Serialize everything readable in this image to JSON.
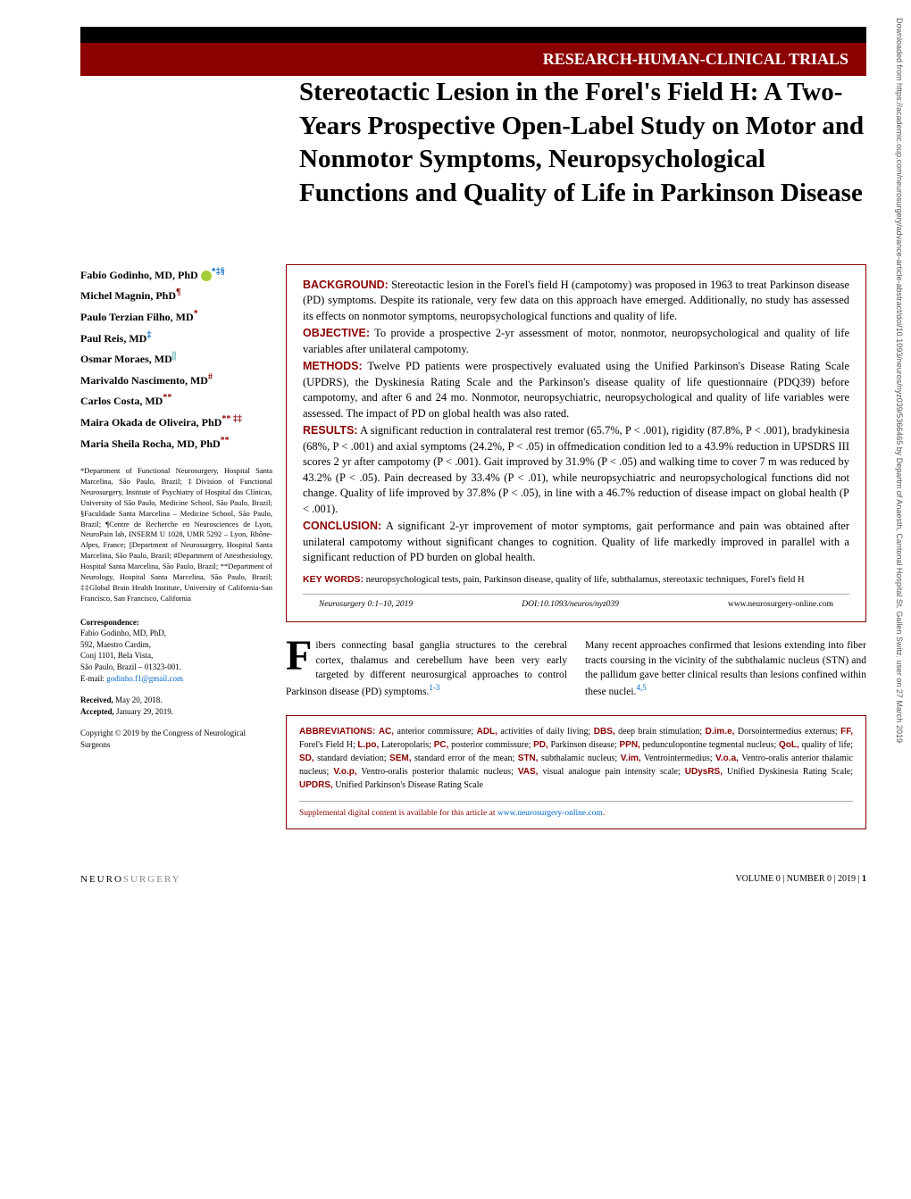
{
  "bars": {
    "black_bg": "#000000",
    "red_bg": "#8b0000",
    "header_label": "RESEARCH-HUMAN-CLINICAL TRIALS"
  },
  "title": "Stereotactic Lesion in the Forel's Field H: A Two-Years Prospective Open-Label Study on Motor and Nonmotor Symptoms, Neuropsychological Functions and Quality of Life in Parkinson Disease",
  "authors": [
    {
      "name": "Fabio Godinho, MD, PhD",
      "sup": "*‡§",
      "orcid": true,
      "sup_class": "blue-sup"
    },
    {
      "name": "Michel Magnin, PhD",
      "sup": "¶",
      "sup_class": "sup"
    },
    {
      "name": "Paulo Terzian Filho, MD",
      "sup": "*",
      "sup_class": "sup"
    },
    {
      "name": "Paul Reis, MD",
      "sup": "‡",
      "sup_class": "blue-sup"
    },
    {
      "name": "Osmar Moraes, MD",
      "sup": "||",
      "sup_class": "teal-sup"
    },
    {
      "name": "Marivaldo Nascimento, MD",
      "sup": "#",
      "sup_class": "sup"
    },
    {
      "name": "Carlos Costa, MD",
      "sup": "**",
      "sup_class": "sup"
    },
    {
      "name": "Maira Okada de Oliveira, PhD",
      "sup": "** ‡‡",
      "sup_class": "sup"
    },
    {
      "name": "Maria Sheila Rocha, MD, PhD",
      "sup": "**",
      "sup_class": "sup"
    }
  ],
  "affiliations": "*Department of Functional Neurosurgery, Hospital Santa Marcelina, São Paulo, Brazil; ‡Division of Functional Neurosurgery, Institute of Psychiatry of Hospital das Clínicas, University of São Paulo, Medicine School, São Paulo, Brazil; §Faculdade Santa Marcelina – Medicine School, São Paulo, Brazil; ¶Centre de Recherche en Neurosciences de Lyon, NeuroPain lab, INSERM U 1028, UMR 5292 – Lyon, Rhône-Alpes, France; ||Department of Neurosurgery, Hospital Santa Marcelina, São Paulo, Brazil; #Department of Anesthesiology, Hospital Santa Marcelina, São Paulo, Brazil; **Department of Neurology, Hospital Santa Marcelina, São Paulo, Brazil; ‡‡Global Brain Health Institute, University of California-San Francisco, San Francisco, California",
  "correspondence": {
    "heading": "Correspondence:",
    "name": "Fabio Godinho, MD, PhD,",
    "line1": "592, Maestro Cardim,",
    "line2": "Conj 1101, Bela Vista,",
    "line3": "São Paulo, Brazil – 01323-001.",
    "email_label": "E-mail:",
    "email": "godinho.f1@gmail.com"
  },
  "received": {
    "received_label": "Received,",
    "received_date": "May 20, 2018.",
    "accepted_label": "Accepted,",
    "accepted_date": "January 29, 2019."
  },
  "copyright": "Copyright © 2019 by the Congress of Neurological Surgeons",
  "abstract": {
    "background_label": "BACKGROUND:",
    "background": "Stereotactic lesion in the Forel's field H (campotomy) was proposed in 1963 to treat Parkinson disease (PD) symptoms. Despite its rationale, very few data on this approach have emerged. Additionally, no study has assessed its effects on nonmotor symptoms, neuropsychological functions and quality of life.",
    "objective_label": "OBJECTIVE:",
    "objective": "To provide a prospective 2-yr assessment of motor, nonmotor, neuropsychological and quality of life variables after unilateral campotomy.",
    "methods_label": "METHODS:",
    "methods": "Twelve PD patients were prospectively evaluated using the Unified Parkinson's Disease Rating Scale (UPDRS), the Dyskinesia Rating Scale and the Parkinson's disease quality of life questionnaire (PDQ39) before campotomy, and after 6 and 24 mo. Nonmotor, neuropsychiatric, neuropsychological and quality of life variables were assessed. The impact of PD on global health was also rated.",
    "results_label": "RESULTS:",
    "results": "A significant reduction in contralateral rest tremor (65.7%, P < .001), rigidity (87.8%, P < .001), bradykinesia (68%, P < .001) and axial symptoms (24.2%, P < .05) in offmedication condition led to a 43.9% reduction in UPSDRS III scores 2 yr after campotomy (P < .001). Gait improved by 31.9% (P < .05) and walking time to cover 7 m was reduced by 43.2% (P < .05). Pain decreased by 33.4% (P < .01), while neuropsychiatric and neuropsychological functions did not change. Quality of life improved by 37.8% (P < .05), in line with a 46.7% reduction of disease impact on global health (P < .001).",
    "conclusion_label": "CONCLUSION:",
    "conclusion": "A significant 2-yr improvement of motor symptoms, gait performance and pain was obtained after unilateral campotomy without significant changes to cognition. Quality of life markedly improved in parallel with a significant reduction of PD burden on global health.",
    "keywords_label": "KEY WORDS:",
    "keywords": "neuropsychological tests, pain, Parkinson disease, quality of life, subthalamus, stereotaxic techniques, Forel's field H"
  },
  "citation": {
    "journal": "Neurosurgery 0:1–10, 2019",
    "doi": "DOI:10.1093/neuros/nyz039",
    "url": "www.neurosurgery-online.com"
  },
  "intro": {
    "col1": "ibers connecting basal ganglia structures to the cerebral cortex, thalamus and cerebellum have been very early targeted by different neurosurgical approaches to control Parkinson disease (PD) symptoms.",
    "col1_ref": "1-3",
    "col2": "Many recent approaches confirmed that lesions extending into fiber tracts coursing in the vicinity of the subthalamic nucleus (STN) and the pallidum gave better clinical results than lesions confined within these nuclei.",
    "col2_ref": "4,5"
  },
  "abbreviations": {
    "label": "ABBREVIATIONS:",
    "items": [
      {
        "term": "AC,",
        "def": "anterior commissure;"
      },
      {
        "term": "ADL,",
        "def": "activities of daily living;"
      },
      {
        "term": "DBS,",
        "def": "deep brain stimulation;"
      },
      {
        "term": "D.im.e,",
        "def": "Dorsointermedius externus;"
      },
      {
        "term": "FF,",
        "def": "Forel's Field H;"
      },
      {
        "term": "L.po,",
        "def": "Lateropolaris;"
      },
      {
        "term": "PC,",
        "def": "posterior commissure;"
      },
      {
        "term": "PD,",
        "def": "Parkinson disease;"
      },
      {
        "term": "PPN,",
        "def": "pedunculopontine tegmental nucleus;"
      },
      {
        "term": "QoL,",
        "def": "quality of life;"
      },
      {
        "term": "SD,",
        "def": "standard deviation;"
      },
      {
        "term": "SEM,",
        "def": "standard error of the mean;"
      },
      {
        "term": "STN,",
        "def": "subthalamic nucleus;"
      },
      {
        "term": "V.im,",
        "def": "Ventrointermedius;"
      },
      {
        "term": "V.o.a,",
        "def": "Ventro-oralis anterior thalamic nucleus;"
      },
      {
        "term": "V.o.p,",
        "def": "Ventro-oralis posterior thalamic nucleus;"
      },
      {
        "term": "VAS,",
        "def": "visual analogue pain intensity scale;"
      },
      {
        "term": "UDysRS,",
        "def": "Unified Dyskinesia Rating Scale;"
      },
      {
        "term": "UPDRS,",
        "def": "Unified Parkinson's Disease Rating Scale"
      }
    ]
  },
  "supplemental": {
    "text": "Supplemental digital content is available for this article at ",
    "link": "www.neurosurgery-online.com",
    "suffix": "."
  },
  "footer": {
    "journal_bold": "NEURO",
    "journal_light": "SURGERY",
    "right": "VOLUME 0 | NUMBER 0 | 2019 | 1"
  },
  "sidebar_download": "Downloaded from https://academic.oup.com/neurosurgery/advance-article-abstract/doi/10.1093/neuros/nyz039/5366465 by Departm of Anaesth, Cantonal Hospital St. Gallen Switz. user on 27 March 2019"
}
